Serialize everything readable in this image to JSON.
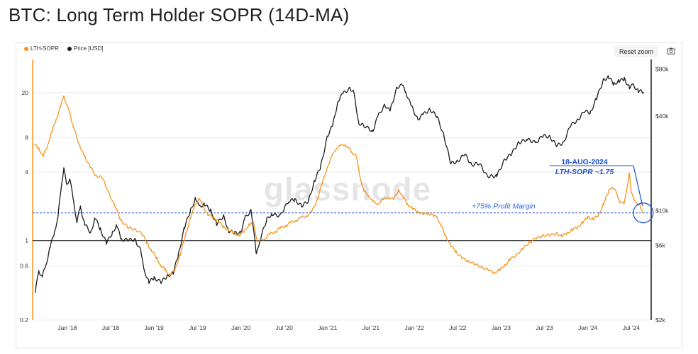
{
  "title": "BTC: Long Term Holder SOPR (14D-MA)",
  "toolbar": {
    "reset_zoom_label": "Reset zoom",
    "camera_icon": "camera-icon"
  },
  "colors": {
    "sopr": "#f7931a",
    "price": "#1a1a1a",
    "annotation": "#1d4fd8"
  },
  "chart_data": {
    "type": "line",
    "legend": [
      "LTH-SOPR",
      "Price [USD]"
    ],
    "legend_position": "top-left",
    "x_ticks": [
      "Jan '18",
      "Jul '18",
      "Jan '19",
      "Jul '19",
      "Jan '20",
      "Jul '20",
      "Jan '21",
      "Jul '21",
      "Jan '22",
      "Jul '22",
      "Jan '23",
      "Jul '23",
      "Jan '24",
      "Jul '24"
    ],
    "x_range": [
      2017.6,
      2024.73
    ],
    "y_left": {
      "scale": "log",
      "range": [
        0.2,
        38
      ],
      "ticks": [
        0.2,
        0.6,
        1,
        4,
        8,
        20
      ],
      "tick_labels": [
        "0.2",
        "0.6",
        "1",
        "4",
        "8",
        "20"
      ]
    },
    "y_right": {
      "scale": "log",
      "range": [
        2000,
        90000
      ],
      "ticks": [
        2000,
        6000,
        10000,
        40000,
        80000
      ],
      "tick_labels": [
        "$2k",
        "$6k",
        "$10k",
        "$40k",
        "$80k"
      ]
    },
    "series": [
      {
        "name": "LTH-SOPR",
        "axis": "left",
        "points": [
          [
            2017.62,
            7.0
          ],
          [
            2017.67,
            6.5
          ],
          [
            2017.72,
            5.5
          ],
          [
            2017.77,
            6.8
          ],
          [
            2017.82,
            9.0
          ],
          [
            2017.87,
            11.5
          ],
          [
            2017.92,
            15.0
          ],
          [
            2017.96,
            18.5
          ],
          [
            2017.99,
            16.0
          ],
          [
            2018.03,
            13.0
          ],
          [
            2018.07,
            10.0
          ],
          [
            2018.1,
            8.5
          ],
          [
            2018.15,
            6.5
          ],
          [
            2018.2,
            5.5
          ],
          [
            2018.26,
            4.5
          ],
          [
            2018.33,
            3.7
          ],
          [
            2018.4,
            3.6
          ],
          [
            2018.48,
            2.6
          ],
          [
            2018.55,
            2.0
          ],
          [
            2018.62,
            1.5
          ],
          [
            2018.7,
            1.3
          ],
          [
            2018.78,
            1.25
          ],
          [
            2018.86,
            1.15
          ],
          [
            2018.92,
            0.95
          ],
          [
            2018.97,
            0.82
          ],
          [
            2019.03,
            0.7
          ],
          [
            2019.08,
            0.6
          ],
          [
            2019.13,
            0.55
          ],
          [
            2019.18,
            0.5
          ],
          [
            2019.24,
            0.55
          ],
          [
            2019.3,
            0.75
          ],
          [
            2019.36,
            1.1
          ],
          [
            2019.42,
            1.6
          ],
          [
            2019.47,
            2.0
          ],
          [
            2019.52,
            2.4
          ],
          [
            2019.56,
            2.0
          ],
          [
            2019.62,
            1.7
          ],
          [
            2019.68,
            1.6
          ],
          [
            2019.74,
            1.5
          ],
          [
            2019.8,
            1.3
          ],
          [
            2019.86,
            1.25
          ],
          [
            2019.92,
            1.15
          ],
          [
            2019.98,
            1.12
          ],
          [
            2020.04,
            1.2
          ],
          [
            2020.1,
            1.4
          ],
          [
            2020.14,
            1.45
          ],
          [
            2020.19,
            1.0
          ],
          [
            2020.23,
            1.0
          ],
          [
            2020.28,
            1.05
          ],
          [
            2020.34,
            1.15
          ],
          [
            2020.4,
            1.2
          ],
          [
            2020.46,
            1.3
          ],
          [
            2020.52,
            1.35
          ],
          [
            2020.58,
            1.45
          ],
          [
            2020.64,
            1.5
          ],
          [
            2020.7,
            1.6
          ],
          [
            2020.76,
            1.65
          ],
          [
            2020.82,
            1.8
          ],
          [
            2020.88,
            2.3
          ],
          [
            2020.94,
            3.2
          ],
          [
            2021.0,
            4.5
          ],
          [
            2021.05,
            5.5
          ],
          [
            2021.1,
            6.5
          ],
          [
            2021.15,
            6.8
          ],
          [
            2021.2,
            7.0
          ],
          [
            2021.24,
            6.5
          ],
          [
            2021.28,
            6.0
          ],
          [
            2021.33,
            5.5
          ],
          [
            2021.38,
            3.5
          ],
          [
            2021.42,
            2.7
          ],
          [
            2021.47,
            2.5
          ],
          [
            2021.52,
            2.2
          ],
          [
            2021.58,
            2.1
          ],
          [
            2021.64,
            2.3
          ],
          [
            2021.7,
            2.4
          ],
          [
            2021.76,
            2.3
          ],
          [
            2021.82,
            2.8
          ],
          [
            2021.87,
            2.4
          ],
          [
            2021.92,
            2.1
          ],
          [
            2021.98,
            1.9
          ],
          [
            2022.04,
            1.8
          ],
          [
            2022.1,
            1.7
          ],
          [
            2022.16,
            1.75
          ],
          [
            2022.22,
            1.65
          ],
          [
            2022.26,
            1.6
          ],
          [
            2022.3,
            1.4
          ],
          [
            2022.36,
            1.1
          ],
          [
            2022.42,
            0.9
          ],
          [
            2022.48,
            0.8
          ],
          [
            2022.55,
            0.7
          ],
          [
            2022.62,
            0.66
          ],
          [
            2022.7,
            0.62
          ],
          [
            2022.78,
            0.58
          ],
          [
            2022.86,
            0.55
          ],
          [
            2022.92,
            0.52
          ],
          [
            2022.98,
            0.55
          ],
          [
            2023.04,
            0.6
          ],
          [
            2023.1,
            0.68
          ],
          [
            2023.18,
            0.75
          ],
          [
            2023.25,
            0.85
          ],
          [
            2023.32,
            0.95
          ],
          [
            2023.4,
            1.05
          ],
          [
            2023.48,
            1.1
          ],
          [
            2023.56,
            1.12
          ],
          [
            2023.64,
            1.15
          ],
          [
            2023.7,
            1.1
          ],
          [
            2023.76,
            1.15
          ],
          [
            2023.82,
            1.25
          ],
          [
            2023.88,
            1.3
          ],
          [
            2023.94,
            1.45
          ],
          [
            2024.0,
            1.6
          ],
          [
            2024.06,
            1.55
          ],
          [
            2024.12,
            1.65
          ],
          [
            2024.18,
            2.1
          ],
          [
            2024.24,
            2.7
          ],
          [
            2024.28,
            3.0
          ],
          [
            2024.32,
            2.7
          ],
          [
            2024.37,
            2.2
          ],
          [
            2024.42,
            2.1
          ],
          [
            2024.48,
            4.0
          ],
          [
            2024.5,
            2.6
          ],
          [
            2024.54,
            2.3
          ],
          [
            2024.58,
            2.0
          ],
          [
            2024.6,
            2.1
          ],
          [
            2024.63,
            1.75
          ]
        ]
      },
      {
        "name": "Price [USD]",
        "axis": "right",
        "points": [
          [
            2017.63,
            3000
          ],
          [
            2017.67,
            4100
          ],
          [
            2017.71,
            3800
          ],
          [
            2017.75,
            4400
          ],
          [
            2017.8,
            5800
          ],
          [
            2017.85,
            7200
          ],
          [
            2017.89,
            9000
          ],
          [
            2017.93,
            14000
          ],
          [
            2017.96,
            19000
          ],
          [
            2017.99,
            14500
          ],
          [
            2018.03,
            16000
          ],
          [
            2018.07,
            11500
          ],
          [
            2018.11,
            8500
          ],
          [
            2018.15,
            10500
          ],
          [
            2018.2,
            8200
          ],
          [
            2018.27,
            7200
          ],
          [
            2018.32,
            9000
          ],
          [
            2018.38,
            7600
          ],
          [
            2018.45,
            6200
          ],
          [
            2018.52,
            7200
          ],
          [
            2018.57,
            8100
          ],
          [
            2018.62,
            6500
          ],
          [
            2018.7,
            6500
          ],
          [
            2018.78,
            6500
          ],
          [
            2018.85,
            5500
          ],
          [
            2018.88,
            4200
          ],
          [
            2018.94,
            3500
          ],
          [
            2019.0,
            3700
          ],
          [
            2019.08,
            3500
          ],
          [
            2019.15,
            3800
          ],
          [
            2019.22,
            4000
          ],
          [
            2019.28,
            5200
          ],
          [
            2019.35,
            7800
          ],
          [
            2019.42,
            10000
          ],
          [
            2019.48,
            12000
          ],
          [
            2019.52,
            10500
          ],
          [
            2019.58,
            11000
          ],
          [
            2019.65,
            10000
          ],
          [
            2019.72,
            8200
          ],
          [
            2019.8,
            9200
          ],
          [
            2019.86,
            7400
          ],
          [
            2019.93,
            7200
          ],
          [
            2020.0,
            7200
          ],
          [
            2020.05,
            9000
          ],
          [
            2020.12,
            10000
          ],
          [
            2020.18,
            5200
          ],
          [
            2020.22,
            6500
          ],
          [
            2020.3,
            8800
          ],
          [
            2020.36,
            9500
          ],
          [
            2020.45,
            9200
          ],
          [
            2020.55,
            11500
          ],
          [
            2020.62,
            11700
          ],
          [
            2020.7,
            10700
          ],
          [
            2020.78,
            11500
          ],
          [
            2020.85,
            15500
          ],
          [
            2020.92,
            19000
          ],
          [
            2021.0,
            30000
          ],
          [
            2021.06,
            35000
          ],
          [
            2021.12,
            50000
          ],
          [
            2021.18,
            56000
          ],
          [
            2021.26,
            60000
          ],
          [
            2021.3,
            57000
          ],
          [
            2021.36,
            36000
          ],
          [
            2021.45,
            34000
          ],
          [
            2021.52,
            32000
          ],
          [
            2021.58,
            40000
          ],
          [
            2021.66,
            47000
          ],
          [
            2021.72,
            43000
          ],
          [
            2021.8,
            61000
          ],
          [
            2021.86,
            63000
          ],
          [
            2021.9,
            57000
          ],
          [
            2021.96,
            47000
          ],
          [
            2022.04,
            38000
          ],
          [
            2022.1,
            41000
          ],
          [
            2022.18,
            44000
          ],
          [
            2022.26,
            40000
          ],
          [
            2022.34,
            30000
          ],
          [
            2022.42,
            20000
          ],
          [
            2022.5,
            20500
          ],
          [
            2022.58,
            23000
          ],
          [
            2022.66,
            19500
          ],
          [
            2022.75,
            20000
          ],
          [
            2022.84,
            16500
          ],
          [
            2022.95,
            16600
          ],
          [
            2023.04,
            21000
          ],
          [
            2023.12,
            23000
          ],
          [
            2023.2,
            27000
          ],
          [
            2023.3,
            28500
          ],
          [
            2023.4,
            27000
          ],
          [
            2023.48,
            30000
          ],
          [
            2023.56,
            29500
          ],
          [
            2023.64,
            26000
          ],
          [
            2023.72,
            27000
          ],
          [
            2023.8,
            35000
          ],
          [
            2023.88,
            37500
          ],
          [
            2023.96,
            43000
          ],
          [
            2024.03,
            42000
          ],
          [
            2024.1,
            52000
          ],
          [
            2024.18,
            68000
          ],
          [
            2024.24,
            71000
          ],
          [
            2024.3,
            64000
          ],
          [
            2024.36,
            67000
          ],
          [
            2024.42,
            69000
          ],
          [
            2024.48,
            61000
          ],
          [
            2024.52,
            63000
          ],
          [
            2024.58,
            58000
          ],
          [
            2024.64,
            57000
          ]
        ]
      }
    ],
    "reference_lines": [
      {
        "axis": "left",
        "value": 1.0,
        "style": "solid"
      },
      {
        "axis": "left",
        "value": 1.75,
        "style": "dashed",
        "label": "+75% Profit Margin"
      }
    ],
    "annotation": {
      "date": "18-AUG-2024",
      "text": "LTH-SOPR ~1.75",
      "x": 2024.63,
      "y": 1.75
    },
    "watermark": "glassnode"
  }
}
